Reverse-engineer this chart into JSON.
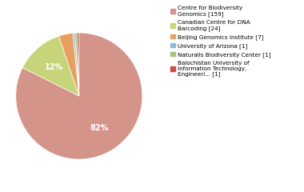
{
  "labels": [
    "Centre for Biodiversity\nGenomics [159]",
    "Canadian Centre for DNA\nBarcoding [24]",
    "Beijing Genomics Institute [7]",
    "University of Arizona [1]",
    "Naturalis Biodiversity Center [1]",
    "Balochistan University of\nInformation Technology,\nEngineeri... [1]"
  ],
  "values": [
    159,
    24,
    7,
    1,
    1,
    1
  ],
  "colors": [
    "#d4948a",
    "#c8d47a",
    "#e8a060",
    "#90b8d8",
    "#a0c878",
    "#c85040"
  ],
  "autopct_threshold": 5,
  "background_color": "#ffffff",
  "figsize": [
    3.8,
    2.4
  ],
  "dpi": 100
}
